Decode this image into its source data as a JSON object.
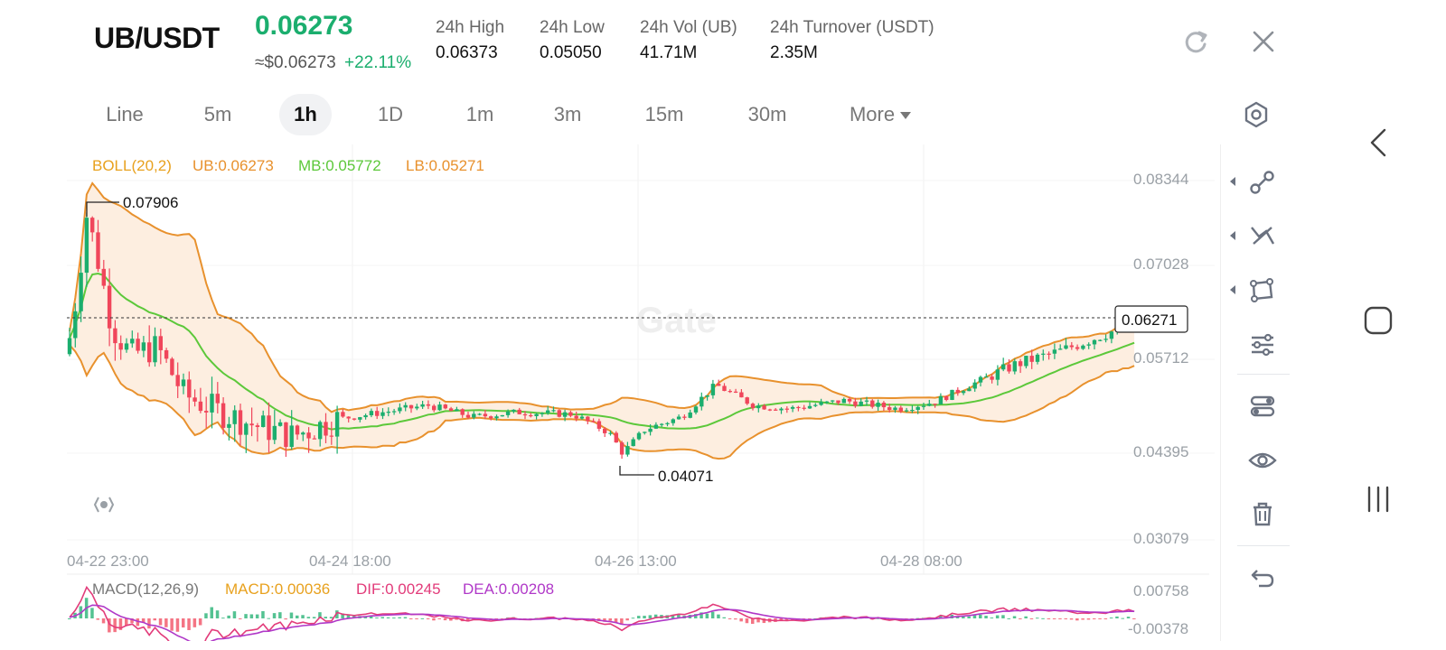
{
  "header": {
    "pair": "UB/USDT",
    "price": "0.06273",
    "usd_price": "≈$0.06273",
    "change": "+22.11%",
    "stats": [
      {
        "label": "24h   High",
        "value": "0.06373"
      },
      {
        "label": "24h   Low",
        "value": "0.05050"
      },
      {
        "label": "24h   Vol (UB)",
        "value": "41.71M"
      },
      {
        "label": "24h   Turnover (USDT)",
        "value": "2.35M"
      }
    ],
    "refresh_icon": "refresh-icon",
    "close_icon": "close-icon"
  },
  "timeframes": {
    "items": [
      "Line",
      "5m",
      "1h",
      "1D",
      "1m",
      "3m",
      "15m",
      "30m",
      "More"
    ],
    "active": "1h",
    "settings_icon": "hexagon-settings-icon"
  },
  "indicator": {
    "boll": "BOLL(20,2)",
    "ub": "UB:0.06273",
    "mb": "MB:0.05772",
    "lb": "LB:0.05271"
  },
  "macd": {
    "name": "MACD(12,26,9)",
    "macd": "MACD:0.00036",
    "dif": "DIF:0.00245",
    "dea": "DEA:0.00208",
    "axis_top": "0.00758",
    "axis_bottom": "-0.00378"
  },
  "chart_data": {
    "type": "candlestick",
    "y_ticks": [
      "0.08344",
      "0.07028",
      "0.05712",
      "0.04395",
      "0.03079"
    ],
    "ylim": [
      0.03079,
      0.08344
    ],
    "x_ticks": [
      "04-22 23:00",
      "04-24 18:00",
      "04-26 13:00",
      "04-28 08:00"
    ],
    "high_marker": "0.07906",
    "low_marker": "0.04071",
    "last_price_label": "0.06271",
    "watermark": "Gate",
    "colors": {
      "up": "#1bae6e",
      "down": "#f0465b",
      "band": "#e8912d",
      "mid": "#5cc83a",
      "fill": "#fdeee0"
    }
  },
  "toolbar": {
    "tools": [
      "trend-line-icon",
      "zigzag-icon",
      "shape-icon",
      "sliders-icon",
      "indicator-icon",
      "eye-icon",
      "trash-icon",
      "undo-icon"
    ]
  },
  "system_nav": [
    "back-icon",
    "home-icon",
    "recents-icon"
  ]
}
